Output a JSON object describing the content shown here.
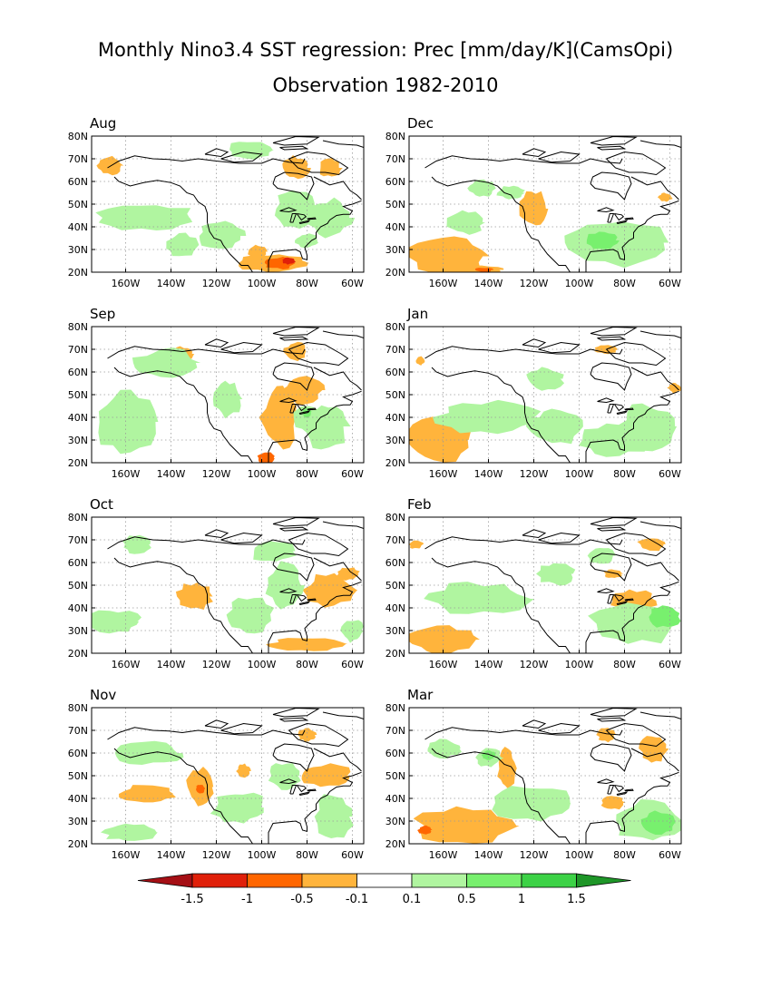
{
  "title": {
    "line1": "Monthly Nino3.4 SST regression: Prec [mm/day/K](CamsOpi)",
    "line2": "Observation 1982-2010"
  },
  "map": {
    "lon_range": [
      -175,
      -55
    ],
    "lat_range": [
      20,
      80
    ],
    "lon_ticks": [
      -160,
      -140,
      -120,
      -100,
      -80,
      -60
    ],
    "lon_tick_labels": [
      "160W",
      "140W",
      "120W",
      "100W",
      "80W",
      "60W"
    ],
    "lat_ticks": [
      20,
      30,
      40,
      50,
      60,
      70,
      80
    ],
    "lat_tick_labels": [
      "20N",
      "30N",
      "40N",
      "50N",
      "60N",
      "70N",
      "80N"
    ]
  },
  "colorbar": {
    "levels": [
      -1.5,
      -1,
      -0.5,
      -0.1,
      0.1,
      0.5,
      1,
      1.5
    ],
    "tick_labels": [
      "-1.5",
      "-1",
      "-0.5",
      "-0.1",
      "0.1",
      "0.5",
      "1",
      "1.5"
    ],
    "colors": [
      "#a50f15",
      "#e0200a",
      "#ff6600",
      "#ffb43c",
      "#ffffff",
      "#b0f5a0",
      "#78f06e",
      "#3cd246",
      "#1e9628"
    ]
  },
  "panels": [
    {
      "label": "Aug",
      "blobs": [
        {
          "lon": -95,
          "lat": 24,
          "rx": 16,
          "ry": 4,
          "level": 1
        },
        {
          "lon": -92,
          "lat": 24,
          "rx": 7,
          "ry": 2.5,
          "level": 2
        },
        {
          "lon": -88,
          "lat": 25,
          "rx": 3,
          "ry": 1.5,
          "level": 3
        },
        {
          "lon": -102,
          "lat": 29,
          "rx": 4,
          "ry": 3,
          "level": 1
        },
        {
          "lon": -85,
          "lat": 66,
          "rx": 6,
          "ry": 5,
          "level": 1
        },
        {
          "lon": -70,
          "lat": 66,
          "rx": 5,
          "ry": 4,
          "level": 1
        },
        {
          "lon": -167,
          "lat": 67,
          "rx": 6,
          "ry": 4,
          "level": 1
        },
        {
          "lon": -150,
          "lat": 44,
          "rx": 22,
          "ry": 6,
          "level": -1
        },
        {
          "lon": -118,
          "lat": 36,
          "rx": 10,
          "ry": 6,
          "level": -1
        },
        {
          "lon": -85,
          "lat": 48,
          "rx": 9,
          "ry": 8,
          "level": -1
        },
        {
          "lon": -70,
          "lat": 44,
          "rx": 10,
          "ry": 8,
          "level": -1
        },
        {
          "lon": -105,
          "lat": 74,
          "rx": 10,
          "ry": 4,
          "level": -1
        },
        {
          "lon": -135,
          "lat": 32,
          "rx": 8,
          "ry": 5,
          "level": -1
        },
        {
          "lon": -80,
          "lat": 34,
          "rx": 5,
          "ry": 3,
          "level": -1
        }
      ]
    },
    {
      "label": "Dec",
      "blobs": [
        {
          "lon": -158,
          "lat": 27,
          "rx": 17,
          "ry": 9,
          "level": 1
        },
        {
          "lon": -120,
          "lat": 48,
          "rx": 6,
          "ry": 8,
          "level": 1
        },
        {
          "lon": -145,
          "lat": 21,
          "rx": 12,
          "ry": 2,
          "level": 1
        },
        {
          "lon": -142,
          "lat": 21,
          "rx": 4,
          "ry": 1,
          "level": 2
        },
        {
          "lon": -62,
          "lat": 53,
          "rx": 3,
          "ry": 2,
          "level": 1
        },
        {
          "lon": -85,
          "lat": 33,
          "rx": 25,
          "ry": 10,
          "level": -1
        },
        {
          "lon": -90,
          "lat": 34,
          "rx": 7,
          "ry": 4,
          "level": -2
        },
        {
          "lon": -143,
          "lat": 57,
          "rx": 6,
          "ry": 4,
          "level": -1
        },
        {
          "lon": -150,
          "lat": 42,
          "rx": 8,
          "ry": 5,
          "level": -1
        },
        {
          "lon": -130,
          "lat": 55,
          "rx": 6,
          "ry": 3,
          "level": -1
        }
      ]
    },
    {
      "label": "Sep",
      "blobs": [
        {
          "lon": -92,
          "lat": 40,
          "rx": 8,
          "ry": 14,
          "level": 1
        },
        {
          "lon": -82,
          "lat": 52,
          "rx": 9,
          "ry": 6,
          "level": 1
        },
        {
          "lon": -85,
          "lat": 69,
          "rx": 5,
          "ry": 4,
          "level": 1
        },
        {
          "lon": -135,
          "lat": 68,
          "rx": 5,
          "ry": 3,
          "level": 1
        },
        {
          "lon": -98,
          "lat": 22,
          "rx": 4,
          "ry": 3,
          "level": 2
        },
        {
          "lon": -160,
          "lat": 38,
          "rx": 13,
          "ry": 14,
          "level": -1
        },
        {
          "lon": -142,
          "lat": 64,
          "rx": 14,
          "ry": 6,
          "level": -1
        },
        {
          "lon": -115,
          "lat": 48,
          "rx": 6,
          "ry": 8,
          "level": -1
        },
        {
          "lon": -80,
          "lat": 40,
          "rx": 6,
          "ry": 6,
          "level": -1
        },
        {
          "lon": -72,
          "lat": 36,
          "rx": 10,
          "ry": 10,
          "level": -1
        },
        {
          "lon": -80,
          "lat": 42,
          "rx": 2,
          "ry": 2,
          "level": -2
        }
      ]
    },
    {
      "label": "Jan",
      "blobs": [
        {
          "lon": -162,
          "lat": 30,
          "rx": 14,
          "ry": 10,
          "level": 1
        },
        {
          "lon": -88,
          "lat": 70,
          "rx": 5,
          "ry": 2,
          "level": 1
        },
        {
          "lon": -58,
          "lat": 53,
          "rx": 3,
          "ry": 2,
          "level": 1
        },
        {
          "lon": -170,
          "lat": 65,
          "rx": 2,
          "ry": 2,
          "level": 1
        },
        {
          "lon": -140,
          "lat": 40,
          "rx": 22,
          "ry": 7,
          "level": -1
        },
        {
          "lon": -110,
          "lat": 36,
          "rx": 12,
          "ry": 8,
          "level": -1
        },
        {
          "lon": -85,
          "lat": 30,
          "rx": 16,
          "ry": 7,
          "level": -1
        },
        {
          "lon": -115,
          "lat": 57,
          "rx": 8,
          "ry": 5,
          "level": -1
        },
        {
          "lon": -70,
          "lat": 36,
          "rx": 12,
          "ry": 10,
          "level": -1
        }
      ]
    },
    {
      "label": "Oct",
      "blobs": [
        {
          "lon": -130,
          "lat": 45,
          "rx": 8,
          "ry": 6,
          "level": 1
        },
        {
          "lon": -70,
          "lat": 48,
          "rx": 11,
          "ry": 7,
          "level": 1
        },
        {
          "lon": -80,
          "lat": 24,
          "rx": 16,
          "ry": 3,
          "level": 1
        },
        {
          "lon": -62,
          "lat": 55,
          "rx": 5,
          "ry": 3,
          "level": 1
        },
        {
          "lon": -165,
          "lat": 34,
          "rx": 12,
          "ry": 5,
          "level": -1
        },
        {
          "lon": -105,
          "lat": 37,
          "rx": 10,
          "ry": 8,
          "level": -1
        },
        {
          "lon": -90,
          "lat": 50,
          "rx": 8,
          "ry": 10,
          "level": -1
        },
        {
          "lon": -95,
          "lat": 65,
          "rx": 10,
          "ry": 5,
          "level": -1
        },
        {
          "lon": -155,
          "lat": 68,
          "rx": 6,
          "ry": 4,
          "level": -1
        },
        {
          "lon": -60,
          "lat": 30,
          "rx": 5,
          "ry": 5,
          "level": -1
        }
      ]
    },
    {
      "label": "Feb",
      "blobs": [
        {
          "lon": -160,
          "lat": 26,
          "rx": 15,
          "ry": 6,
          "level": 1
        },
        {
          "lon": -76,
          "lat": 43,
          "rx": 10,
          "ry": 5,
          "level": 1
        },
        {
          "lon": -78,
          "lat": 31,
          "rx": 8,
          "ry": 4,
          "level": 1
        },
        {
          "lon": -85,
          "lat": 55,
          "rx": 4,
          "ry": 2,
          "level": 1
        },
        {
          "lon": -68,
          "lat": 68,
          "rx": 6,
          "ry": 3,
          "level": 1
        },
        {
          "lon": -172,
          "lat": 68,
          "rx": 3,
          "ry": 2,
          "level": 1
        },
        {
          "lon": -145,
          "lat": 44,
          "rx": 22,
          "ry": 7,
          "level": -1
        },
        {
          "lon": -75,
          "lat": 33,
          "rx": 20,
          "ry": 9,
          "level": -1
        },
        {
          "lon": -62,
          "lat": 36,
          "rx": 7,
          "ry": 5,
          "level": -2
        },
        {
          "lon": -110,
          "lat": 55,
          "rx": 8,
          "ry": 5,
          "level": -1
        },
        {
          "lon": -90,
          "lat": 63,
          "rx": 6,
          "ry": 4,
          "level": -1
        }
      ]
    },
    {
      "label": "Nov",
      "blobs": [
        {
          "lon": -150,
          "lat": 42,
          "rx": 12,
          "ry": 4,
          "level": 1
        },
        {
          "lon": -127,
          "lat": 45,
          "rx": 6,
          "ry": 8,
          "level": 1
        },
        {
          "lon": -127,
          "lat": 44,
          "rx": 2,
          "ry": 2,
          "level": 2
        },
        {
          "lon": -108,
          "lat": 52,
          "rx": 3,
          "ry": 3,
          "level": 1
        },
        {
          "lon": -72,
          "lat": 50,
          "rx": 12,
          "ry": 5,
          "level": 1
        },
        {
          "lon": -80,
          "lat": 68,
          "rx": 4,
          "ry": 3,
          "level": 1
        },
        {
          "lon": -158,
          "lat": 25,
          "rx": 12,
          "ry": 4,
          "level": -1
        },
        {
          "lon": -110,
          "lat": 36,
          "rx": 12,
          "ry": 7,
          "level": -1
        },
        {
          "lon": -68,
          "lat": 32,
          "rx": 8,
          "ry": 10,
          "level": -1
        },
        {
          "lon": -150,
          "lat": 60,
          "rx": 15,
          "ry": 5,
          "level": -1
        },
        {
          "lon": -90,
          "lat": 50,
          "rx": 7,
          "ry": 6,
          "level": -1
        }
      ]
    },
    {
      "label": "Mar",
      "blobs": [
        {
          "lon": -150,
          "lat": 28,
          "rx": 22,
          "ry": 8,
          "level": 1
        },
        {
          "lon": -168,
          "lat": 26,
          "rx": 3,
          "ry": 2,
          "level": 2
        },
        {
          "lon": -132,
          "lat": 53,
          "rx": 4,
          "ry": 9,
          "level": 1
        },
        {
          "lon": -85,
          "lat": 38,
          "rx": 5,
          "ry": 3,
          "level": 1
        },
        {
          "lon": -67,
          "lat": 62,
          "rx": 6,
          "ry": 6,
          "level": 1
        },
        {
          "lon": -88,
          "lat": 68,
          "rx": 4,
          "ry": 3,
          "level": 1
        },
        {
          "lon": -120,
          "lat": 38,
          "rx": 18,
          "ry": 8,
          "level": -1
        },
        {
          "lon": -140,
          "lat": 58,
          "rx": 6,
          "ry": 4,
          "level": -1
        },
        {
          "lon": -140,
          "lat": 59,
          "rx": 3,
          "ry": 2,
          "level": -2
        },
        {
          "lon": -70,
          "lat": 30,
          "rx": 15,
          "ry": 9,
          "level": -1
        },
        {
          "lon": -65,
          "lat": 29,
          "rx": 8,
          "ry": 5,
          "level": -2
        },
        {
          "lon": -160,
          "lat": 62,
          "rx": 8,
          "ry": 4,
          "level": -1
        }
      ]
    }
  ]
}
